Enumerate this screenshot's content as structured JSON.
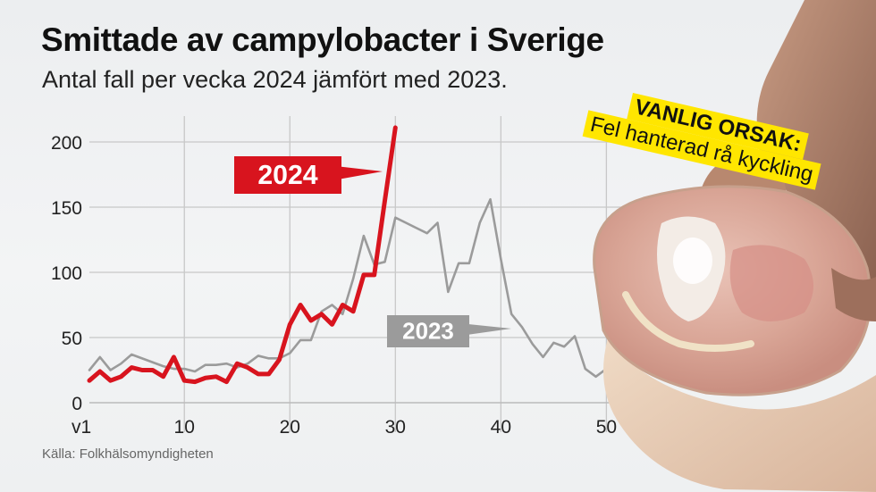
{
  "title": "Smittade av campylobacter i Sverige",
  "subtitle": "Antal fall per vecka 2024 jämfört med 2023.",
  "source": "Källa: Folkhälsomyndigheten",
  "callout": {
    "title": "VANLIG ORSAK:",
    "text": "Fel hanterad rå kyckling"
  },
  "colors": {
    "series_2024": "#d8141e",
    "series_2023": "#9b9b9b",
    "callout_bg": "#ffe600"
  },
  "chart_data": {
    "type": "line",
    "title": "Smittade av campylobacter i Sverige",
    "subtitle": "Antal fall per vecka 2024 jämfört med 2023.",
    "xlabel": "",
    "ylabel": "",
    "xlim": [
      1,
      52
    ],
    "ylim": [
      0,
      210
    ],
    "grid": true,
    "x_ticks": [
      1,
      10,
      20,
      30,
      40,
      50
    ],
    "x_tick_labels": [
      "v1",
      "10",
      "20",
      "30",
      "40",
      "50"
    ],
    "y_ticks": [
      0,
      50,
      100,
      150,
      200
    ],
    "y_tick_labels": [
      "0",
      "50",
      "100",
      "150",
      "200"
    ],
    "series": [
      {
        "name": "2023",
        "x": [
          1,
          2,
          3,
          4,
          5,
          6,
          7,
          8,
          9,
          10,
          11,
          12,
          13,
          14,
          15,
          16,
          17,
          18,
          19,
          20,
          21,
          22,
          23,
          24,
          25,
          26,
          27,
          28,
          29,
          30,
          31,
          32,
          33,
          34,
          35,
          36,
          37,
          38,
          39,
          40,
          41,
          42,
          43,
          44,
          45,
          46,
          47,
          48,
          49,
          50,
          51,
          52
        ],
        "values": [
          25,
          35,
          25,
          30,
          37,
          34,
          31,
          28,
          26,
          26,
          24,
          29,
          29,
          30,
          27,
          30,
          36,
          34,
          34,
          38,
          48,
          48,
          70,
          75,
          68,
          95,
          128,
          106,
          108,
          142,
          138,
          134,
          130,
          138,
          85,
          107,
          107,
          138,
          156,
          110,
          68,
          58,
          45,
          35,
          46,
          43,
          51,
          26,
          20,
          26,
          24,
          22
        ]
      },
      {
        "name": "2024",
        "x": [
          1,
          2,
          3,
          4,
          5,
          6,
          7,
          8,
          9,
          10,
          11,
          12,
          13,
          14,
          15,
          16,
          17,
          18,
          19,
          20,
          21,
          22,
          23,
          24,
          25,
          26,
          27,
          28,
          29,
          30
        ],
        "values": [
          17,
          24,
          17,
          20,
          27,
          25,
          25,
          20,
          35,
          17,
          16,
          19,
          20,
          16,
          30,
          27,
          22,
          22,
          33,
          60,
          75,
          63,
          68,
          60,
          75,
          70,
          98,
          98,
          155,
          211
        ]
      }
    ]
  }
}
